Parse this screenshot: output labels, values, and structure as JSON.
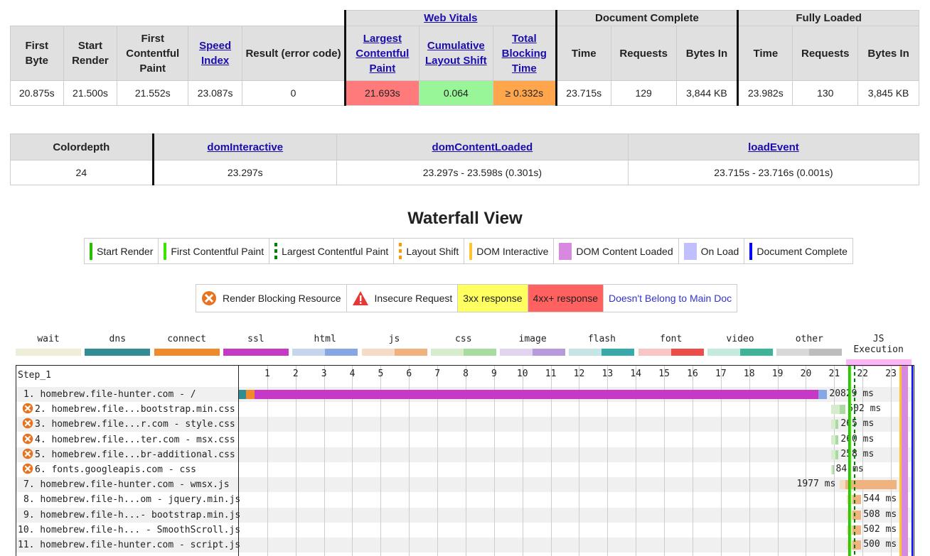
{
  "metrics": {
    "group_headers": {
      "web_vitals": "Web Vitals",
      "document_complete": "Document Complete",
      "fully_loaded": "Fully Loaded"
    },
    "headers": [
      "First Byte",
      "Start Render",
      "First Contentful Paint",
      "Speed Index",
      "Result (error code)",
      "Largest Contentful Paint",
      "Cumulative Layout Shift",
      "Total Blocking Time",
      "Time",
      "Requests",
      "Bytes In",
      "Time",
      "Requests",
      "Bytes In"
    ],
    "values": [
      "20.875s",
      "21.500s",
      "21.552s",
      "23.087s",
      "0",
      "21.693s",
      "0.064",
      "≥ 0.332s",
      "23.715s",
      "129",
      "3,844 KB",
      "23.982s",
      "130",
      "3,845 KB"
    ]
  },
  "dom": {
    "headers": [
      "Colordepth",
      "domInteractive",
      "domContentLoaded",
      "loadEvent"
    ],
    "values": [
      "24",
      "23.297s",
      "23.297s - 23.598s (0.301s)",
      "23.715s - 23.716s (0.001s)"
    ]
  },
  "waterfall_title": "Waterfall View",
  "legend1": [
    {
      "label": "Start Render",
      "icon": "start-render-line",
      "color": "#28bc00"
    },
    {
      "label": "First Contentful Paint",
      "icon": "fcp-line",
      "color": "#39e600"
    },
    {
      "label": "Largest Contentful Paint",
      "icon": "lcp-dashed-line",
      "color": "#008000"
    },
    {
      "label": "Layout Shift",
      "icon": "layout-shift-dashed-line",
      "color": "#ff9900"
    },
    {
      "label": "DOM Interactive",
      "icon": "dom-interactive-line",
      "color": "#ffc233"
    },
    {
      "label": "DOM Content Loaded",
      "icon": "dom-content-loaded-box",
      "color": "#d888df"
    },
    {
      "label": "On Load",
      "icon": "on-load-box",
      "color": "#c0c0ff"
    },
    {
      "label": "Document Complete",
      "icon": "document-complete-line",
      "color": "#0000ff"
    }
  ],
  "legend2": [
    {
      "label": "Render Blocking Resource",
      "icon": "render-blocking-icon"
    },
    {
      "label": "Insecure Request",
      "icon": "warning-icon"
    },
    {
      "label": "3xx response",
      "bg": "#ffff60"
    },
    {
      "label": "4xx+ response",
      "bg": "#ff6060"
    },
    {
      "label": "Doesn't Belong to Main Doc",
      "color": "#3333cc"
    }
  ],
  "types": [
    {
      "label": "wait",
      "c1": "#eeeed8",
      "c2": "#eeeed8"
    },
    {
      "label": "dns",
      "c1": "#308d93",
      "c2": "#308d93"
    },
    {
      "label": "connect",
      "c1": "#f08a2b",
      "c2": "#f08a2b"
    },
    {
      "label": "ssl",
      "c1": "#c639c6",
      "c2": "#c639c6"
    },
    {
      "label": "html",
      "c1": "#c5d5ef",
      "c2": "#86a6e6"
    },
    {
      "label": "js",
      "c1": "#f5dcc7",
      "c2": "#f0b27e"
    },
    {
      "label": "css",
      "c1": "#d6eccd",
      "c2": "#a8dba0"
    },
    {
      "label": "image",
      "c1": "#e1d4ee",
      "c2": "#b799dc"
    },
    {
      "label": "flash",
      "c1": "#c6e6e5",
      "c2": "#36a9a8"
    },
    {
      "label": "font",
      "c1": "#f9c6c4",
      "c2": "#ec4d48"
    },
    {
      "label": "video",
      "c1": "#c6e9df",
      "c2": "#3db495"
    },
    {
      "label": "other",
      "c1": "#d8d8d8",
      "c2": "#bdbdbd"
    },
    {
      "label": "JS Execution",
      "c1": "#fbb6f5",
      "c2": "#fbb6f5"
    }
  ],
  "waterfall": {
    "step": "Step_1",
    "axis_max": 23.8,
    "ticks": [
      1,
      2,
      3,
      4,
      5,
      6,
      7,
      8,
      9,
      10,
      11,
      12,
      13,
      14,
      15,
      16,
      17,
      18,
      19,
      20,
      21,
      22,
      23
    ],
    "rows": [
      {
        "label": "1. homebrew.file-hunter.com - /",
        "blocking": false,
        "start": 0.0,
        "dns": 0.25,
        "connect": 0.55,
        "ssl": 20.45,
        "wait": 20.45,
        "end": 20.75,
        "type": "html",
        "duration": "20829 ms",
        "dur_side": "right"
      },
      {
        "label": "2. homebrew.file...bootstrap.min.css",
        "blocking": true,
        "start": 20.9,
        "wait": 21.2,
        "end": 21.4,
        "type": "css",
        "duration": "502 ms",
        "dur_side": "right"
      },
      {
        "label": "3. homebrew.file...r.com - style.css",
        "blocking": true,
        "start": 20.9,
        "wait": 21.05,
        "end": 21.15,
        "type": "css",
        "duration": "265 ms",
        "dur_side": "right"
      },
      {
        "label": "4. homebrew.file...ter.com - msx.css",
        "blocking": true,
        "start": 20.9,
        "wait": 21.05,
        "end": 21.15,
        "type": "css",
        "duration": "260 ms",
        "dur_side": "right"
      },
      {
        "label": "5. homebrew.file...br-additional.css",
        "blocking": true,
        "start": 20.9,
        "wait": 21.05,
        "end": 21.15,
        "type": "css",
        "duration": "258 ms",
        "dur_side": "right"
      },
      {
        "label": "6. fonts.googleapis.com - css",
        "blocking": true,
        "start": 20.9,
        "wait": 20.95,
        "end": 20.98,
        "type": "css",
        "duration": "84 ms",
        "dur_side": "right"
      },
      {
        "label": "7. homebrew.file-hunter.com - wmsx.js",
        "blocking": false,
        "start": 21.2,
        "wait": 21.4,
        "end": 23.2,
        "type": "js",
        "duration": "1977 ms",
        "dur_side": "left"
      },
      {
        "label": "8. homebrew.file-h...om - jquery.min.js",
        "blocking": false,
        "start": 21.45,
        "wait": 21.65,
        "end": 21.95,
        "type": "js",
        "duration": "544 ms",
        "dur_side": "right"
      },
      {
        "label": "9. homebrew.file-h...- bootstrap.min.js",
        "blocking": false,
        "start": 21.45,
        "wait": 21.65,
        "end": 21.95,
        "type": "js",
        "duration": "508 ms",
        "dur_side": "right"
      },
      {
        "label": "10. homebrew.file-h... - SmoothScroll.js",
        "blocking": false,
        "start": 21.45,
        "wait": 21.65,
        "end": 21.95,
        "type": "js",
        "duration": "502 ms",
        "dur_side": "right"
      },
      {
        "label": "11. homebrew.file-hunter.com - script.js",
        "blocking": false,
        "start": 21.45,
        "wait": 21.65,
        "end": 21.95,
        "type": "js",
        "duration": "500 ms",
        "dur_side": "right"
      }
    ],
    "markers": {
      "start_render": 21.5,
      "fcp": 21.552,
      "lcp": 21.693,
      "dom_interactive": 23.297,
      "dom_content_loaded_start": 23.297,
      "dom_content_loaded_end": 23.598,
      "onload_start": 23.715,
      "onload_end": 23.716,
      "document_complete": 23.715
    }
  }
}
